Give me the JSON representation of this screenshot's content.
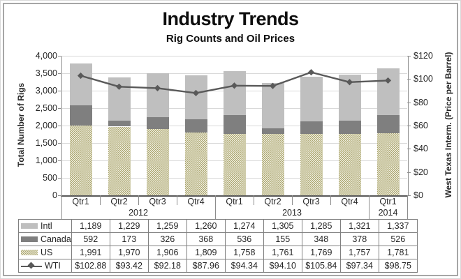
{
  "title": "Industry Trends",
  "subtitle": "Rig Counts and Oil Prices",
  "left_axis": {
    "title": "Total Number of Rigs",
    "ticks": [
      "4,000",
      "3,500",
      "3,000",
      "2,500",
      "2,000",
      "1,500",
      "1,000",
      "500",
      "0"
    ],
    "min": 0,
    "max": 4000
  },
  "right_axis": {
    "title": "West Texas Interm. (Price per Barrel)",
    "ticks": [
      "$120",
      "$100",
      "$80",
      "$60",
      "$40",
      "$20",
      "$0"
    ],
    "min": 0,
    "max": 120
  },
  "chart_data": {
    "type": "combo-stacked-bar-line",
    "categories": [
      "Qtr1",
      "Qtr2",
      "Qtr3",
      "Qtr4",
      "Qtr1",
      "Qtr2",
      "Qtr3",
      "Qtr4",
      "Qtr1"
    ],
    "year_groups": [
      {
        "label": "2012",
        "span": 4
      },
      {
        "label": "2013",
        "span": 4
      },
      {
        "label": "2014",
        "span": 1
      }
    ],
    "stack_order": [
      "US",
      "Canada",
      "Intl"
    ],
    "series": [
      {
        "name": "Intl",
        "type": "bar",
        "color": "#bfbfbf",
        "pattern": "solid",
        "values": [
          1189,
          1229,
          1259,
          1260,
          1274,
          1305,
          1285,
          1321,
          1337
        ]
      },
      {
        "name": "Canada",
        "type": "bar",
        "color": "#7f7f7f",
        "pattern": "solid",
        "values": [
          592,
          173,
          326,
          368,
          536,
          155,
          348,
          378,
          526
        ]
      },
      {
        "name": "US",
        "type": "bar",
        "color": "#c6c19c",
        "pattern": "checker",
        "values": [
          1991,
          1970,
          1906,
          1809,
          1758,
          1761,
          1769,
          1757,
          1781
        ]
      },
      {
        "name": "WTI",
        "type": "line",
        "color": "#595959",
        "values": [
          102.88,
          93.42,
          92.18,
          87.96,
          94.34,
          94.1,
          105.84,
          97.34,
          98.75
        ]
      }
    ],
    "left_ylim": [
      0,
      4000
    ],
    "right_ylim": [
      0,
      120
    ],
    "grid": true,
    "legend_position": "table-left"
  },
  "table": {
    "rows": [
      {
        "label": "Intl",
        "key": "intl",
        "values": [
          "1,189",
          "1,229",
          "1,259",
          "1,260",
          "1,274",
          "1,305",
          "1,285",
          "1,321",
          "1,337"
        ]
      },
      {
        "label": "Canada",
        "key": "canada",
        "values": [
          "592",
          "173",
          "326",
          "368",
          "536",
          "155",
          "348",
          "378",
          "526"
        ]
      },
      {
        "label": "US",
        "key": "us",
        "values": [
          "1,991",
          "1,970",
          "1,906",
          "1,809",
          "1,758",
          "1,761",
          "1,769",
          "1,757",
          "1,781"
        ]
      },
      {
        "label": "WTI",
        "key": "wti",
        "values": [
          "$102.88",
          "$93.42",
          "$92.18",
          "$87.96",
          "$94.34",
          "$94.10",
          "$105.84",
          "$97.34",
          "$98.75"
        ]
      }
    ]
  },
  "colors": {
    "intl": "#bfbfbf",
    "canada": "#7f7f7f",
    "us": "#c6c19c",
    "wti_line": "#595959",
    "gridline": "#d9d9d9",
    "axis": "#8c8c8c",
    "table_border": "#808080"
  }
}
